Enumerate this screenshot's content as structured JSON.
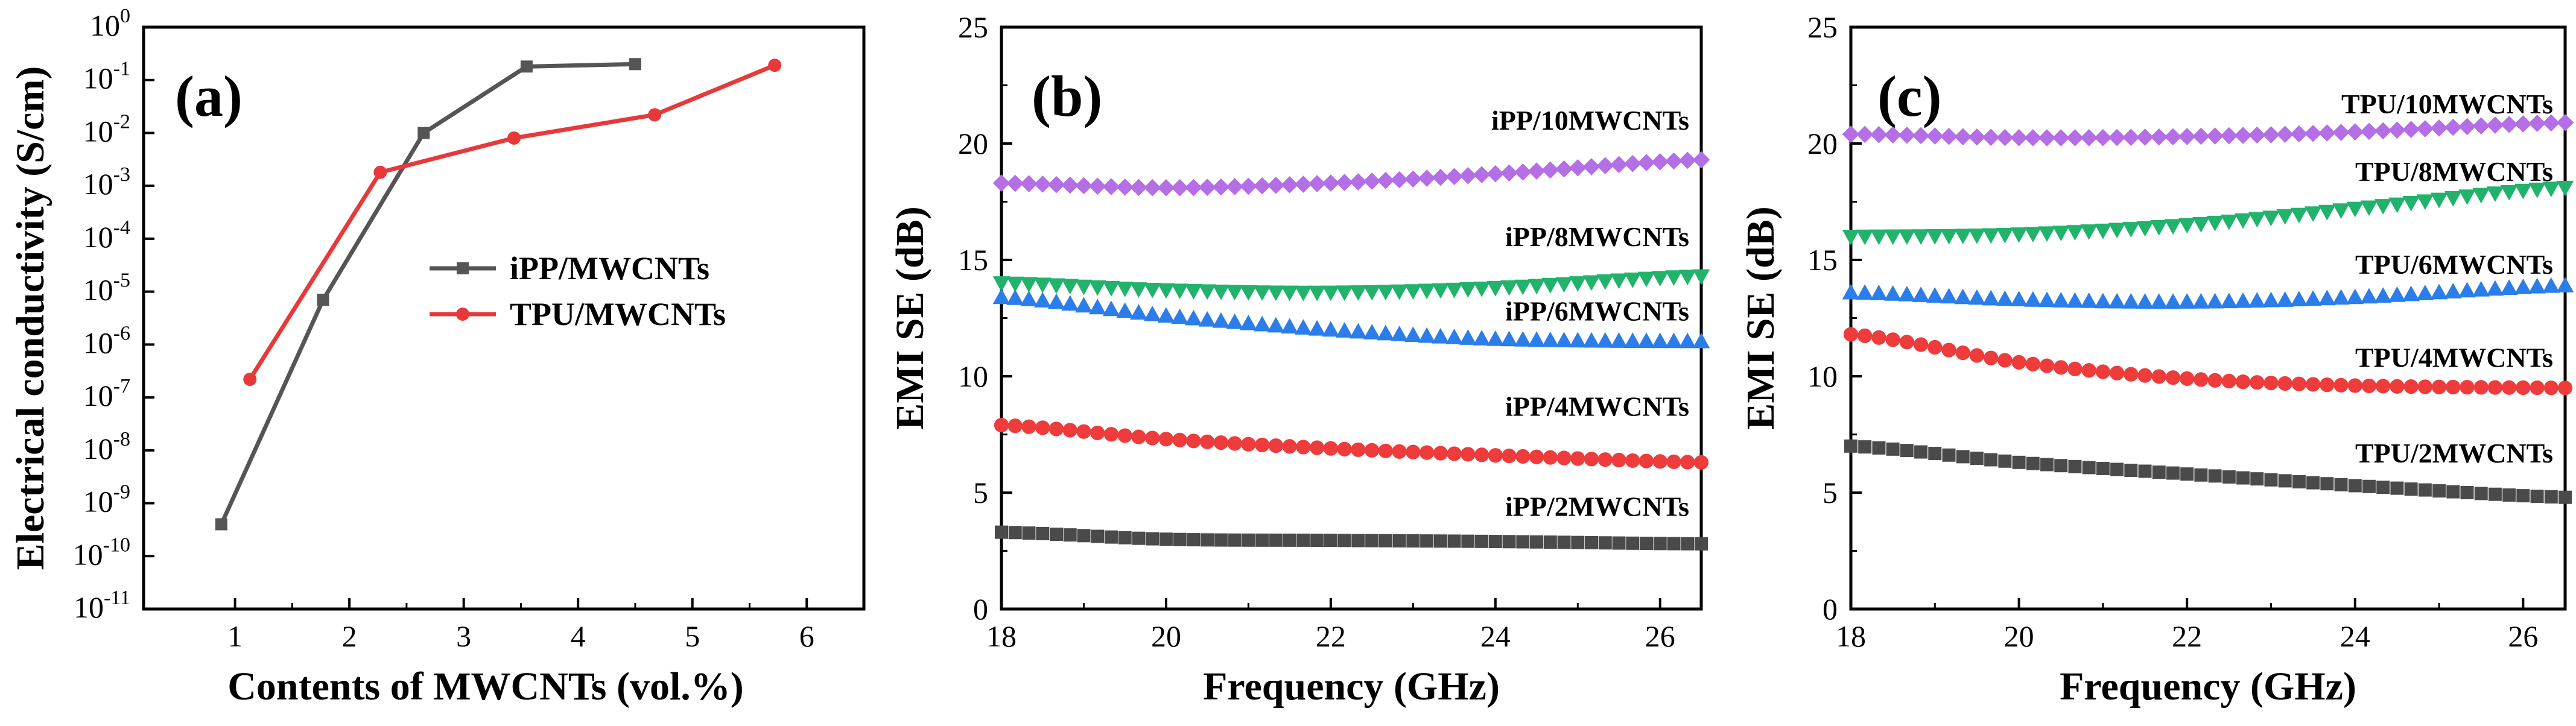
{
  "chart_data": [
    {
      "panel": "(a)",
      "type": "line",
      "xlabel": "Contents of MWCNTs  (vol.%)",
      "ylabel": "Electrical conductivity (S/cm)",
      "xlim": [
        0.2,
        6.5
      ],
      "xticks": [
        1,
        2,
        3,
        4,
        5,
        6
      ],
      "ylim_log10": [
        -11,
        0
      ],
      "y_scale": "log",
      "yticks_exp": [
        -11,
        -10,
        -9,
        -8,
        -7,
        -6,
        -5,
        -4,
        -3,
        -2,
        -1,
        0
      ],
      "legend_position": "center-right",
      "series": [
        {
          "name": "iPP/MWCNTs",
          "color": "#555555",
          "marker": "square",
          "x": [
            0.88,
            1.77,
            2.65,
            3.55,
            4.5
          ],
          "y": [
            4e-10,
            7e-06,
            0.01,
            0.18,
            0.2
          ]
        },
        {
          "name": "TPU/MWCNTs",
          "color": "#e8393a",
          "marker": "circle",
          "x": [
            1.13,
            2.27,
            3.44,
            4.67,
            5.72
          ],
          "y": [
            2.2e-07,
            0.0018,
            0.008,
            0.022,
            0.19
          ]
        }
      ]
    },
    {
      "panel": "(b)",
      "type": "line",
      "xlabel": "Frequency (GHz)",
      "ylabel": "EMI SE (dB)",
      "xlim": [
        18,
        26.5
      ],
      "xticks": [
        18,
        20,
        22,
        24,
        26
      ],
      "ylim": [
        0,
        25
      ],
      "yticks": [
        0,
        5,
        10,
        15,
        20,
        25
      ],
      "series": [
        {
          "name": "iPP/10MWCNTs",
          "color": "#b46ee6",
          "marker": "diamond",
          "x": [
            18,
            20,
            22,
            24,
            26.5
          ],
          "y": [
            18.3,
            18.1,
            18.3,
            18.7,
            19.3
          ]
        },
        {
          "name": "iPP/8MWCNTs",
          "color": "#21b36b",
          "marker": "triangle-down",
          "x": [
            18,
            20,
            22,
            24,
            26.5
          ],
          "y": [
            14.0,
            13.7,
            13.6,
            13.8,
            14.3
          ]
        },
        {
          "name": "iPP/6MWCNTs",
          "color": "#2b7de9",
          "marker": "triangle-up",
          "x": [
            18,
            20,
            22,
            24,
            26.5
          ],
          "y": [
            13.4,
            12.6,
            12.0,
            11.6,
            11.5
          ]
        },
        {
          "name": "iPP/4MWCNTs",
          "color": "#ee3b3b",
          "marker": "circle",
          "x": [
            18,
            20,
            22,
            24,
            26.5
          ],
          "y": [
            7.9,
            7.3,
            6.9,
            6.6,
            6.3
          ]
        },
        {
          "name": "iPP/2MWCNTs",
          "color": "#4a4a4a",
          "marker": "square",
          "x": [
            18,
            20,
            22,
            24,
            26.5
          ],
          "y": [
            3.3,
            3.0,
            2.95,
            2.9,
            2.8
          ]
        }
      ]
    },
    {
      "panel": "(c)",
      "type": "line",
      "xlabel": "Frequency (GHz)",
      "ylabel": "EMI SE (dB)",
      "xlim": [
        18,
        26.5
      ],
      "xticks": [
        18,
        20,
        22,
        24,
        26
      ],
      "ylim": [
        0,
        25
      ],
      "yticks": [
        0,
        5,
        10,
        15,
        20,
        25
      ],
      "series": [
        {
          "name": "TPU/10MWCNTs",
          "color": "#b46ee6",
          "marker": "diamond",
          "x": [
            18,
            20,
            22,
            24,
            26.5
          ],
          "y": [
            20.4,
            20.25,
            20.3,
            20.5,
            20.9
          ]
        },
        {
          "name": "TPU/8MWCNTs",
          "color": "#21b36b",
          "marker": "triangle-down",
          "x": [
            18,
            20,
            22,
            24,
            26.5
          ],
          "y": [
            16.0,
            16.1,
            16.5,
            17.2,
            18.1
          ]
        },
        {
          "name": "TPU/6MWCNTs",
          "color": "#2b7de9",
          "marker": "triangle-up",
          "x": [
            18,
            20,
            22,
            24,
            26.5
          ],
          "y": [
            13.6,
            13.3,
            13.2,
            13.4,
            13.9
          ]
        },
        {
          "name": "TPU/4MWCNTs",
          "color": "#ee3b3b",
          "marker": "circle",
          "x": [
            18,
            20,
            22,
            24,
            26.5
          ],
          "y": [
            11.8,
            10.6,
            9.9,
            9.6,
            9.5
          ]
        },
        {
          "name": "TPU/2MWCNTs",
          "color": "#4a4a4a",
          "marker": "square",
          "x": [
            18,
            20,
            22,
            24,
            26.5
          ],
          "y": [
            7.0,
            6.3,
            5.8,
            5.3,
            4.8
          ]
        }
      ]
    }
  ]
}
